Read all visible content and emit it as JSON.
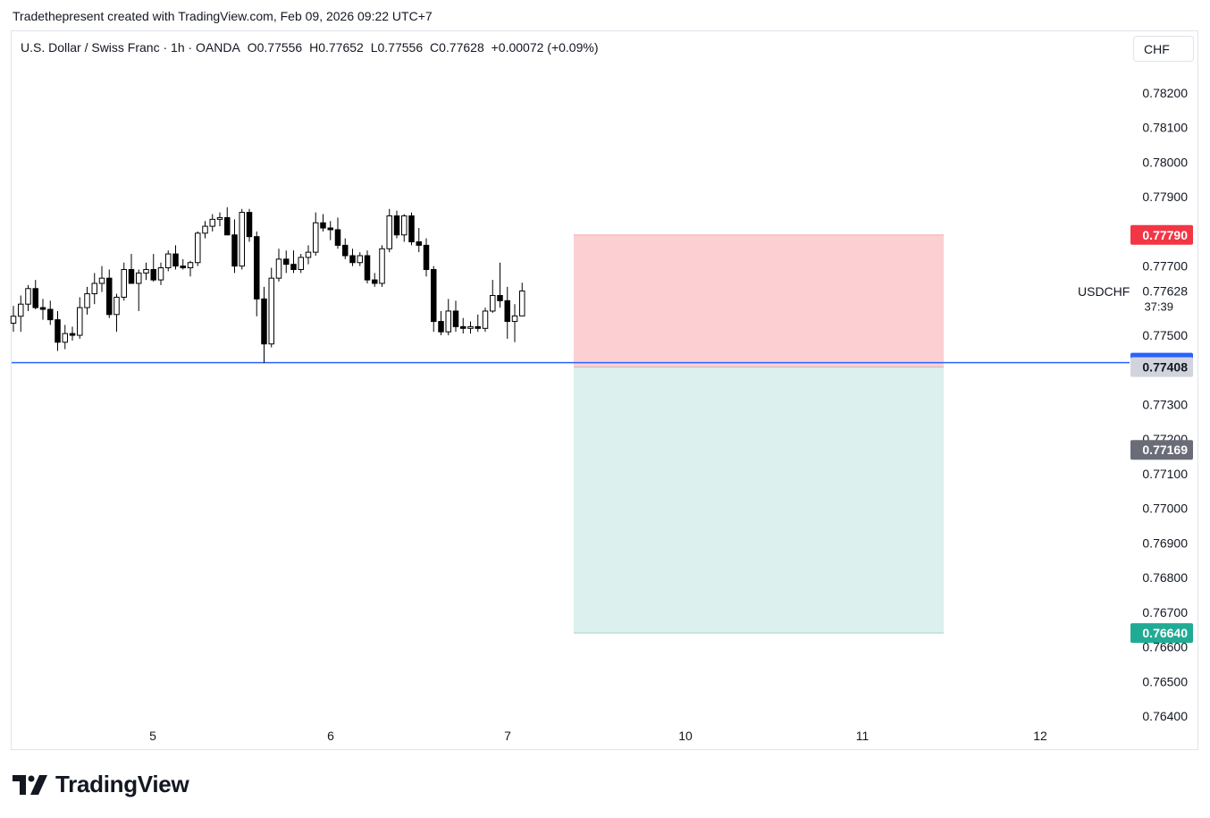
{
  "header": {
    "attribution": "Tradethepresent created with TradingView.com, Feb 09, 2026 09:22 UTC+7"
  },
  "legend": {
    "symbol_name": "U.S. Dollar / Swiss Franc · 1h · OANDA",
    "open": "O0.77556",
    "high": "H0.77652",
    "low": "L0.77556",
    "close": "C0.77628",
    "change": "+0.00072 (+0.09%)"
  },
  "currency_button": "CHF",
  "symbol_label": "USDCHF",
  "price_axis": {
    "ticks": [
      "0.78200",
      "0.78100",
      "0.78000",
      "0.77900",
      "0.77700",
      "0.77500",
      "0.77300",
      "0.77200",
      "0.77100",
      "0.77000",
      "0.76900",
      "0.76800",
      "0.76700",
      "0.76600",
      "0.76500",
      "0.76400"
    ]
  },
  "time_axis": {
    "ticks": [
      "5",
      "6",
      "7",
      "10",
      "11",
      "12"
    ]
  },
  "price_tags": {
    "stop_loss": "0.77790",
    "current_price": "0.77628",
    "countdown": "37:39",
    "horizontal_line": "0.77421",
    "entry": "0.77408",
    "gray_tag": "0.77169",
    "take_profit": "0.76640"
  },
  "colors": {
    "up_body": "#ffffff",
    "down_body": "#000000",
    "wick": "#000000",
    "horizontal_line": "#2962ff",
    "stop_zone": "#f23645",
    "target_zone": "#089981",
    "stop_tag": "#f23645",
    "target_tag": "#22ab94",
    "gray_tag": "#6a6d78"
  },
  "logo": {
    "text": "TradingView"
  },
  "chart_data": {
    "type": "candlestick",
    "title": "U.S. Dollar / Swiss Franc · 1h · OANDA",
    "ylim": [
      0.764,
      0.7822
    ],
    "x_ticks": [
      "5",
      "6",
      "7",
      "10",
      "11",
      "12"
    ],
    "horizontal_line": 0.77421,
    "short_position": {
      "entry": 0.77408,
      "stop": 0.7779,
      "target": 0.7664
    },
    "candles": [
      [
        0.77535,
        0.77585,
        0.7751,
        0.77555
      ],
      [
        0.77555,
        0.77615,
        0.7751,
        0.7759
      ],
      [
        0.7759,
        0.77645,
        0.7757,
        0.77635
      ],
      [
        0.77635,
        0.7766,
        0.77575,
        0.7758
      ],
      [
        0.7758,
        0.77605,
        0.77545,
        0.77575
      ],
      [
        0.77575,
        0.776,
        0.7753,
        0.77545
      ],
      [
        0.77545,
        0.7757,
        0.77455,
        0.7748
      ],
      [
        0.7748,
        0.7753,
        0.7746,
        0.77505
      ],
      [
        0.77505,
        0.77525,
        0.77485,
        0.775
      ],
      [
        0.775,
        0.7761,
        0.7749,
        0.7758
      ],
      [
        0.7758,
        0.7764,
        0.7756,
        0.7762
      ],
      [
        0.7762,
        0.7768,
        0.7759,
        0.7765
      ],
      [
        0.7765,
        0.777,
        0.77625,
        0.77665
      ],
      [
        0.77665,
        0.7769,
        0.7755,
        0.7756
      ],
      [
        0.7756,
        0.7762,
        0.7751,
        0.7761
      ],
      [
        0.7761,
        0.7771,
        0.776,
        0.7769
      ],
      [
        0.7769,
        0.77735,
        0.77665,
        0.7765
      ],
      [
        0.7765,
        0.7769,
        0.7757,
        0.7768
      ],
      [
        0.7768,
        0.7771,
        0.7766,
        0.7769
      ],
      [
        0.7769,
        0.77735,
        0.77655,
        0.7766
      ],
      [
        0.7766,
        0.7771,
        0.77645,
        0.77695
      ],
      [
        0.77695,
        0.77745,
        0.77685,
        0.77735
      ],
      [
        0.77735,
        0.7776,
        0.7769,
        0.777
      ],
      [
        0.777,
        0.7772,
        0.7769,
        0.77695
      ],
      [
        0.77695,
        0.77715,
        0.7767,
        0.7771
      ],
      [
        0.7771,
        0.778,
        0.777,
        0.77795
      ],
      [
        0.77795,
        0.7783,
        0.7778,
        0.77815
      ],
      [
        0.77815,
        0.7785,
        0.778,
        0.77835
      ],
      [
        0.77835,
        0.77855,
        0.77815,
        0.7784
      ],
      [
        0.7784,
        0.7787,
        0.7779,
        0.7779
      ],
      [
        0.7779,
        0.77835,
        0.7768,
        0.777
      ],
      [
        0.777,
        0.77865,
        0.7769,
        0.77855
      ],
      [
        0.77855,
        0.77865,
        0.7777,
        0.77785
      ],
      [
        0.77785,
        0.778,
        0.77555,
        0.77605
      ],
      [
        0.77605,
        0.7764,
        0.7742,
        0.77475
      ],
      [
        0.77475,
        0.77695,
        0.77465,
        0.77665
      ],
      [
        0.77665,
        0.7775,
        0.77655,
        0.7772
      ],
      [
        0.7772,
        0.77745,
        0.7768,
        0.77705
      ],
      [
        0.77705,
        0.77745,
        0.7768,
        0.7769
      ],
      [
        0.7769,
        0.77735,
        0.7768,
        0.77725
      ],
      [
        0.77725,
        0.7776,
        0.77705,
        0.7774
      ],
      [
        0.7774,
        0.77855,
        0.7773,
        0.77825
      ],
      [
        0.77825,
        0.7785,
        0.778,
        0.7781
      ],
      [
        0.7781,
        0.7783,
        0.77775,
        0.77805
      ],
      [
        0.77805,
        0.7784,
        0.7775,
        0.7776
      ],
      [
        0.7776,
        0.7778,
        0.7772,
        0.7773
      ],
      [
        0.7773,
        0.7775,
        0.777,
        0.7771
      ],
      [
        0.7771,
        0.7774,
        0.777,
        0.7773
      ],
      [
        0.7773,
        0.77745,
        0.7765,
        0.7766
      ],
      [
        0.7766,
        0.7768,
        0.7764,
        0.7765
      ],
      [
        0.7765,
        0.7776,
        0.7764,
        0.7775
      ],
      [
        0.7775,
        0.77865,
        0.7774,
        0.77845
      ],
      [
        0.77845,
        0.7786,
        0.7778,
        0.7779
      ],
      [
        0.7779,
        0.7785,
        0.7777,
        0.77845
      ],
      [
        0.77845,
        0.77855,
        0.7776,
        0.7777
      ],
      [
        0.7777,
        0.7781,
        0.7774,
        0.7776
      ],
      [
        0.7776,
        0.7778,
        0.7767,
        0.7769
      ],
      [
        0.7769,
        0.777,
        0.7751,
        0.7754
      ],
      [
        0.7754,
        0.7757,
        0.775,
        0.7751
      ],
      [
        0.7751,
        0.77605,
        0.775,
        0.7757
      ],
      [
        0.7757,
        0.776,
        0.7751,
        0.77525
      ],
      [
        0.77525,
        0.7755,
        0.77505,
        0.7752
      ],
      [
        0.7752,
        0.7754,
        0.77505,
        0.77525
      ],
      [
        0.77525,
        0.7756,
        0.7751,
        0.7752
      ],
      [
        0.7752,
        0.7758,
        0.7751,
        0.7757
      ],
      [
        0.7757,
        0.7766,
        0.77565,
        0.77615
      ],
      [
        0.77615,
        0.7771,
        0.7758,
        0.776
      ],
      [
        0.776,
        0.7764,
        0.7749,
        0.7754
      ],
      [
        0.7754,
        0.7759,
        0.7748,
        0.77556
      ],
      [
        0.77556,
        0.77652,
        0.77556,
        0.77628
      ]
    ]
  }
}
